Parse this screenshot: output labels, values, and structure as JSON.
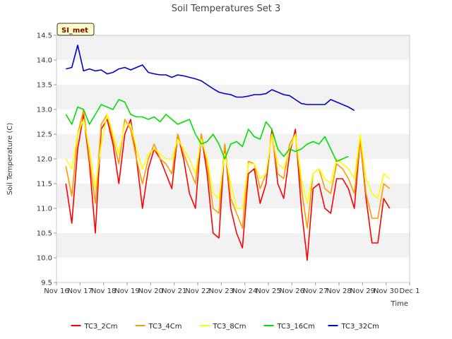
{
  "chart_data": {
    "type": "line",
    "title": "Soil Temperatures Set 3",
    "xlabel": "Time",
    "ylabel": "Soil Temperature (C)",
    "badge": "SI_met",
    "x_ticks": [
      "Nov 16",
      "Nov 17",
      "Nov 18",
      "Nov 19",
      "Nov 20",
      "Nov 21",
      "Nov 22",
      "Nov 23",
      "Nov 24",
      "Nov 25",
      "Nov 26",
      "Nov 27",
      "Nov 28",
      "Nov 29",
      "Nov 30",
      "Dec 1"
    ],
    "xlim": [
      0,
      15
    ],
    "ylim": [
      9.5,
      14.5
    ],
    "y_ticks": [
      "9.5",
      "10.0",
      "10.5",
      "11.0",
      "11.5",
      "12.0",
      "12.5",
      "13.0",
      "13.5",
      "14.0",
      "14.5"
    ],
    "grid": "alternating horizontal bands",
    "legend_position": "bottom",
    "x_step_days": 0.25,
    "series": [
      {
        "name": "TC3_2Cm",
        "color": "#ff0000",
        "x_start": 0.4,
        "values": [
          11.5,
          10.7,
          12.2,
          12.9,
          11.9,
          10.5,
          12.6,
          12.8,
          12.3,
          11.5,
          12.5,
          12.8,
          12.0,
          11.0,
          11.8,
          12.2,
          12.0,
          11.7,
          11.4,
          12.5,
          12.0,
          11.3,
          11.0,
          12.5,
          11.7,
          10.5,
          10.4,
          12.3,
          11.0,
          10.5,
          10.2,
          11.7,
          11.8,
          11.1,
          11.5,
          12.6,
          11.5,
          11.2,
          12.1,
          12.6,
          11.0,
          9.95,
          11.4,
          11.5,
          11.0,
          10.9,
          11.6,
          11.6,
          11.4,
          11.0,
          12.4,
          11.2,
          10.3,
          10.3,
          11.2,
          11.0
        ]
      },
      {
        "name": "TC3_4Cm",
        "color": "#ff9900",
        "x_start": 0.4,
        "values": [
          11.85,
          11.25,
          12.5,
          13.0,
          12.0,
          11.1,
          12.7,
          12.9,
          12.4,
          11.9,
          12.8,
          12.6,
          12.0,
          11.5,
          12.0,
          12.3,
          12.0,
          11.9,
          11.7,
          12.5,
          12.1,
          11.8,
          11.5,
          12.5,
          11.9,
          11.0,
          10.9,
          12.3,
          11.2,
          10.9,
          10.6,
          11.95,
          11.9,
          11.4,
          11.7,
          12.5,
          11.7,
          11.6,
          12.3,
          12.5,
          11.4,
          10.6,
          11.7,
          11.8,
          11.4,
          11.3,
          11.9,
          11.8,
          11.6,
          11.3,
          12.4,
          11.3,
          10.8,
          10.8,
          11.5,
          11.4
        ]
      },
      {
        "name": "TC3_8Cm",
        "color": "#ffff00",
        "x_start": 0.4,
        "values": [
          12.0,
          11.8,
          12.5,
          12.8,
          12.2,
          11.4,
          12.3,
          12.9,
          12.5,
          12.1,
          12.7,
          12.7,
          12.2,
          11.8,
          12.1,
          12.2,
          12.1,
          12.0,
          12.0,
          12.4,
          12.2,
          12.0,
          11.7,
          12.4,
          12.0,
          11.3,
          11.2,
          12.1,
          11.5,
          11.0,
          11.0,
          11.9,
          11.9,
          11.6,
          11.7,
          12.5,
          11.9,
          11.8,
          12.2,
          12.5,
          11.6,
          11.1,
          11.7,
          11.8,
          11.6,
          11.5,
          12.0,
          11.9,
          11.8,
          11.6,
          12.5,
          11.6,
          11.3,
          11.2,
          11.7,
          11.6
        ]
      },
      {
        "name": "TC3_16Cm",
        "color": "#00e000",
        "x_start": 0.4,
        "values": [
          12.9,
          12.7,
          13.05,
          13.0,
          12.7,
          12.9,
          13.1,
          13.05,
          13.0,
          13.2,
          13.15,
          12.9,
          12.85,
          12.85,
          12.8,
          12.85,
          12.75,
          12.9,
          12.8,
          12.7,
          12.75,
          12.8,
          12.5,
          12.3,
          12.35,
          12.5,
          12.3,
          12.0,
          12.3,
          12.35,
          12.25,
          12.6,
          12.45,
          12.4,
          12.75,
          12.6,
          12.2,
          12.05,
          12.2,
          12.15,
          12.2,
          12.3,
          12.35,
          12.3,
          12.45,
          12.2,
          11.95,
          12.0,
          12.05
        ]
      },
      {
        "name": "TC3_32Cm",
        "color": "#0000cc",
        "x_start": 0.4,
        "values": [
          13.82,
          13.85,
          14.3,
          13.78,
          13.82,
          13.78,
          13.8,
          13.72,
          13.75,
          13.82,
          13.85,
          13.8,
          13.85,
          13.9,
          13.75,
          13.72,
          13.7,
          13.7,
          13.65,
          13.7,
          13.68,
          13.65,
          13.62,
          13.58,
          13.5,
          13.42,
          13.35,
          13.32,
          13.3,
          13.25,
          13.25,
          13.27,
          13.3,
          13.3,
          13.32,
          13.4,
          13.35,
          13.3,
          13.28,
          13.2,
          13.12,
          13.1,
          13.1,
          13.1,
          13.1,
          13.2,
          13.15,
          13.1,
          13.05,
          12.98
        ]
      }
    ]
  }
}
